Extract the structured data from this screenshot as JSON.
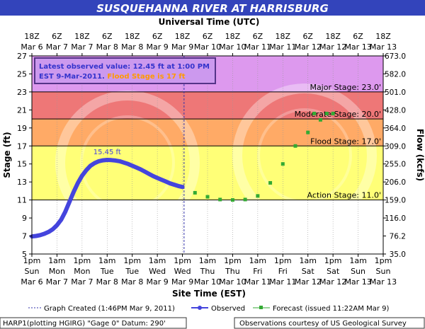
{
  "chart_data": {
    "type": "line",
    "title": "SUSQUEHANNA RIVER AT HARRISBURG",
    "top_axis_title": "Universal Time (UTC)",
    "xlabel": "Site Time (EST)",
    "ylabel": "Stage (ft)",
    "ylabel_right": "Flow (kcfs)",
    "ylim": [
      5,
      27
    ],
    "y_ticks": [
      5,
      7,
      9,
      11,
      13,
      15,
      17,
      19,
      21,
      23,
      25,
      27
    ],
    "y_right_ticks": [
      {
        "stage": 5,
        "label": "35.0"
      },
      {
        "stage": 7,
        "label": "76.2"
      },
      {
        "stage": 9,
        "label": "116.0"
      },
      {
        "stage": 11,
        "label": "159.0"
      },
      {
        "stage": 13,
        "label": "206.0"
      },
      {
        "stage": 15,
        "label": "255.0"
      },
      {
        "stage": 17,
        "label": "309.0"
      },
      {
        "stage": 19,
        "label": "364.0"
      },
      {
        "stage": 21,
        "label": "428.0"
      },
      {
        "stage": 23,
        "label": "501.0"
      },
      {
        "stage": 25,
        "label": "582.0"
      },
      {
        "stage": 27,
        "label": "673.0"
      }
    ],
    "x_range": [
      "2011-03-06 13:00",
      "2011-03-13 13:00"
    ],
    "x_ticks_bottom": [
      {
        "time": "2011-03-06 13:00",
        "line1": "1pm",
        "line2": "Sun",
        "line3": "Mar 6"
      },
      {
        "time": "2011-03-07 01:00",
        "line1": "1am",
        "line2": "Mon",
        "line3": "Mar 7"
      },
      {
        "time": "2011-03-07 13:00",
        "line1": "1pm",
        "line2": "Mon",
        "line3": "Mar 7"
      },
      {
        "time": "2011-03-08 01:00",
        "line1": "1am",
        "line2": "Tue",
        "line3": "Mar 8"
      },
      {
        "time": "2011-03-08 13:00",
        "line1": "1pm",
        "line2": "Tue",
        "line3": "Mar 8"
      },
      {
        "time": "2011-03-09 01:00",
        "line1": "1am",
        "line2": "Wed",
        "line3": "Mar 9"
      },
      {
        "time": "2011-03-09 13:00",
        "line1": "1pm",
        "line2": "Wed",
        "line3": "Mar 9"
      },
      {
        "time": "2011-03-10 01:00",
        "line1": "1am",
        "line2": "Thu",
        "line3": "Mar 10"
      },
      {
        "time": "2011-03-10 13:00",
        "line1": "1pm",
        "line2": "Thu",
        "line3": "Mar 10"
      },
      {
        "time": "2011-03-11 01:00",
        "line1": "1am",
        "line2": "Fri",
        "line3": "Mar 11"
      },
      {
        "time": "2011-03-11 13:00",
        "line1": "1pm",
        "line2": "Fri",
        "line3": "Mar 11"
      },
      {
        "time": "2011-03-12 01:00",
        "line1": "1am",
        "line2": "Sat",
        "line3": "Mar 12"
      },
      {
        "time": "2011-03-12 13:00",
        "line1": "1pm",
        "line2": "Sat",
        "line3": "Mar 12"
      },
      {
        "time": "2011-03-13 01:00",
        "line1": "1am",
        "line2": "Sun",
        "line3": "Mar 13"
      },
      {
        "time": "2011-03-13 13:00",
        "line1": "1pm",
        "line2": "Sun",
        "line3": "Mar 13"
      }
    ],
    "x_ticks_top": [
      {
        "time": "2011-03-06 13:00",
        "line1": "18Z",
        "line2": "Mar 6"
      },
      {
        "time": "2011-03-07 01:00",
        "line1": "6Z",
        "line2": "Mar 7"
      },
      {
        "time": "2011-03-07 13:00",
        "line1": "18Z",
        "line2": "Mar 7"
      },
      {
        "time": "2011-03-08 01:00",
        "line1": "6Z",
        "line2": "Mar 8"
      },
      {
        "time": "2011-03-08 13:00",
        "line1": "18Z",
        "line2": "Mar 8"
      },
      {
        "time": "2011-03-09 01:00",
        "line1": "6Z",
        "line2": "Mar 9"
      },
      {
        "time": "2011-03-09 13:00",
        "line1": "18Z",
        "line2": "Mar 9"
      },
      {
        "time": "2011-03-10 01:00",
        "line1": "6Z",
        "line2": "Mar 10"
      },
      {
        "time": "2011-03-10 13:00",
        "line1": "18Z",
        "line2": "Mar 10"
      },
      {
        "time": "2011-03-11 01:00",
        "line1": "6Z",
        "line2": "Mar 11"
      },
      {
        "time": "2011-03-11 13:00",
        "line1": "18Z",
        "line2": "Mar 11"
      },
      {
        "time": "2011-03-12 01:00",
        "line1": "6Z",
        "line2": "Mar 12"
      },
      {
        "time": "2011-03-12 13:00",
        "line1": "18Z",
        "line2": "Mar 12"
      },
      {
        "time": "2011-03-13 01:00",
        "line1": "6Z",
        "line2": "Mar 13"
      },
      {
        "time": "2011-03-13 13:00",
        "line1": "18Z",
        "line2": "Mar 13"
      }
    ],
    "stage_bands": [
      {
        "name": "Major Stage",
        "label": "Major Stage: 23.0'",
        "from": 23,
        "to": 27,
        "color": "#dd99ee"
      },
      {
        "name": "Moderate Stage",
        "label": "Moderate Stage: 20.0'",
        "from": 20,
        "to": 23,
        "color": "#ee7777"
      },
      {
        "name": "Flood Stage",
        "label": "Flood Stage: 17.0'",
        "from": 17,
        "to": 20,
        "color": "#ffaa66"
      },
      {
        "name": "Action Stage",
        "label": "Action Stage: 11.0'",
        "from": 11,
        "to": 17,
        "color": "#ffff77"
      }
    ],
    "below_action_color": "#ffffff",
    "created_time": "2011-03-09 13:46",
    "peak_label": "15.45 ft",
    "series": [
      {
        "name": "Observed",
        "color": "#4444dd",
        "points": [
          [
            "2011-03-06 13:00",
            6.95
          ],
          [
            "2011-03-06 15:00",
            7.0
          ],
          [
            "2011-03-06 17:00",
            7.1
          ],
          [
            "2011-03-06 19:00",
            7.25
          ],
          [
            "2011-03-06 21:00",
            7.45
          ],
          [
            "2011-03-06 23:00",
            7.75
          ],
          [
            "2011-03-07 01:00",
            8.2
          ],
          [
            "2011-03-07 03:00",
            8.8
          ],
          [
            "2011-03-07 05:00",
            9.7
          ],
          [
            "2011-03-07 07:00",
            10.8
          ],
          [
            "2011-03-07 09:00",
            11.9
          ],
          [
            "2011-03-07 11:00",
            12.9
          ],
          [
            "2011-03-07 13:00",
            13.7
          ],
          [
            "2011-03-07 15:00",
            14.3
          ],
          [
            "2011-03-07 17:00",
            14.8
          ],
          [
            "2011-03-07 19:00",
            15.1
          ],
          [
            "2011-03-07 21:00",
            15.3
          ],
          [
            "2011-03-07 23:00",
            15.4
          ],
          [
            "2011-03-08 01:00",
            15.45
          ],
          [
            "2011-03-08 03:00",
            15.43
          ],
          [
            "2011-03-08 05:00",
            15.38
          ],
          [
            "2011-03-08 07:00",
            15.3
          ],
          [
            "2011-03-08 09:00",
            15.15
          ],
          [
            "2011-03-08 11:00",
            15.0
          ],
          [
            "2011-03-08 13:00",
            14.8
          ],
          [
            "2011-03-08 15:00",
            14.6
          ],
          [
            "2011-03-08 17:00",
            14.4
          ],
          [
            "2011-03-08 19:00",
            14.15
          ],
          [
            "2011-03-08 21:00",
            13.9
          ],
          [
            "2011-03-08 23:00",
            13.65
          ],
          [
            "2011-03-09 01:00",
            13.45
          ],
          [
            "2011-03-09 03:00",
            13.25
          ],
          [
            "2011-03-09 05:00",
            13.05
          ],
          [
            "2011-03-09 07:00",
            12.85
          ],
          [
            "2011-03-09 09:00",
            12.7
          ],
          [
            "2011-03-09 11:00",
            12.55
          ],
          [
            "2011-03-09 13:00",
            12.45
          ]
        ]
      },
      {
        "name": "Forecast",
        "color": "#33aa33",
        "points": [
          [
            "2011-03-09 19:00",
            11.8
          ],
          [
            "2011-03-10 01:00",
            11.35
          ],
          [
            "2011-03-10 07:00",
            11.05
          ],
          [
            "2011-03-10 13:00",
            11.0
          ],
          [
            "2011-03-10 19:00",
            11.05
          ],
          [
            "2011-03-11 01:00",
            11.45
          ],
          [
            "2011-03-11 07:00",
            12.9
          ],
          [
            "2011-03-11 13:00",
            15.0
          ],
          [
            "2011-03-11 19:00",
            17.0
          ],
          [
            "2011-03-12 01:00",
            18.5
          ],
          [
            "2011-03-12 04:00",
            20.6
          ],
          [
            "2011-03-12 07:00",
            19.9
          ],
          [
            "2011-03-12 10:00",
            20.6
          ],
          [
            "2011-03-12 13:00",
            20.6
          ]
        ]
      }
    ],
    "info_box": {
      "line1": "Latest observed value: 12.45 ft at 1:00 PM",
      "line2_prefix": "EST 9-Mar-2011. ",
      "line2_flood": "Flood Stage is 17 ft"
    },
    "legend": {
      "created": "Graph Created (1:46PM Mar 9, 2011)",
      "observed": "Observed",
      "forecast": "Forecast (issued 11:22AM Mar 9)"
    },
    "footer": {
      "left": "HARP1(plotting HGIRG) \"Gage 0\" Datum: 290'",
      "right": "Observations courtesy of US Geological Survey"
    },
    "colors": {
      "title_bg": "#3344bb",
      "title_fg": "#ffffff",
      "observed": "#4444dd",
      "forecast": "#33aa33",
      "info_text": "#3333cc",
      "flood_text": "#ff9900"
    }
  }
}
